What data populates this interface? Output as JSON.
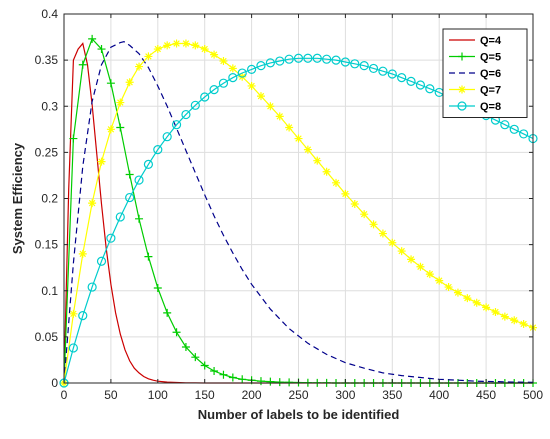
{
  "chart_data": {
    "type": "line",
    "xlabel": "Number of labels to be identified",
    "ylabel": "System Efficiency",
    "xlim": [
      0,
      500
    ],
    "ylim": [
      0,
      0.4
    ],
    "xticks": [
      "0",
      "50",
      "100",
      "150",
      "200",
      "250",
      "300",
      "350",
      "400",
      "450",
      "500"
    ],
    "yticks": [
      "0",
      "0.05",
      "0.1",
      "0.15",
      "0.2",
      "0.25",
      "0.3",
      "0.35",
      "0.4"
    ],
    "grid": true,
    "legend_position": "top-right",
    "series": [
      {
        "name": "Q=4",
        "color": "#cc0000",
        "line_style": "solid",
        "marker": "none",
        "x": [
          0,
          5,
          10,
          15,
          20,
          25,
          30,
          35,
          40,
          45,
          50,
          55,
          60,
          65,
          70,
          75,
          80,
          85,
          90,
          95,
          100,
          110,
          120,
          130,
          140,
          150,
          160,
          170,
          180,
          190,
          200,
          225,
          250,
          275,
          300,
          350,
          400,
          450,
          500
        ],
        "y": [
          0,
          0.21,
          0.35,
          0.362,
          0.368,
          0.345,
          0.302,
          0.248,
          0.194,
          0.146,
          0.107,
          0.076,
          0.053,
          0.036,
          0.024,
          0.016,
          0.011,
          0.007,
          0.0045,
          0.003,
          0.002,
          0.001,
          0.0005,
          0.0002,
          0.0001,
          0,
          0,
          0,
          0,
          0,
          0,
          0,
          0,
          0,
          0,
          0,
          0,
          0,
          0
        ]
      },
      {
        "name": "Q=5",
        "color": "#00cc00",
        "line_style": "solid",
        "marker": "plus",
        "x": [
          0,
          10,
          20,
          30,
          40,
          50,
          60,
          70,
          80,
          90,
          100,
          110,
          120,
          130,
          140,
          150,
          160,
          170,
          180,
          190,
          200,
          210,
          220,
          230,
          240,
          250,
          260,
          270,
          280,
          290,
          300,
          310,
          320,
          330,
          340,
          350,
          360,
          370,
          380,
          390,
          400,
          410,
          420,
          430,
          440,
          450,
          460,
          470,
          480,
          490,
          500
        ],
        "y": [
          0,
          0.265,
          0.345,
          0.373,
          0.362,
          0.325,
          0.277,
          0.226,
          0.178,
          0.137,
          0.103,
          0.076,
          0.055,
          0.039,
          0.028,
          0.019,
          0.013,
          0.009,
          0.006,
          0.004,
          0.003,
          0.002,
          0.0015,
          0.001,
          0.0007,
          0.0005,
          0.0003,
          0.0002,
          0.0001,
          0,
          0,
          0,
          0,
          0,
          0,
          0,
          0,
          0,
          0,
          0,
          0,
          0,
          0,
          0,
          0,
          0,
          0,
          0,
          0,
          0,
          0
        ]
      },
      {
        "name": "Q=6",
        "color": "#00008b",
        "line_style": "dashed",
        "marker": "none",
        "x": [
          0,
          10,
          20,
          30,
          40,
          50,
          60,
          64,
          70,
          80,
          90,
          100,
          110,
          120,
          130,
          140,
          150,
          160,
          170,
          180,
          190,
          200,
          220,
          240,
          260,
          280,
          300,
          320,
          340,
          360,
          380,
          400,
          420,
          440,
          460,
          480,
          500
        ],
        "y": [
          0,
          0.13,
          0.235,
          0.305,
          0.345,
          0.364,
          0.369,
          0.37,
          0.366,
          0.357,
          0.342,
          0.322,
          0.3,
          0.276,
          0.252,
          0.228,
          0.204,
          0.181,
          0.16,
          0.141,
          0.123,
          0.107,
          0.08,
          0.059,
          0.043,
          0.031,
          0.022,
          0.016,
          0.011,
          0.008,
          0.006,
          0.004,
          0.003,
          0.002,
          0.0015,
          0.001,
          0.0008
        ]
      },
      {
        "name": "Q=7",
        "color": "#ffff00",
        "line_style": "solid",
        "marker": "star",
        "x": [
          0,
          10,
          20,
          30,
          40,
          50,
          60,
          70,
          80,
          90,
          100,
          110,
          120,
          130,
          140,
          150,
          160,
          170,
          180,
          190,
          200,
          210,
          220,
          230,
          240,
          250,
          260,
          270,
          280,
          290,
          300,
          310,
          320,
          330,
          340,
          350,
          360,
          370,
          380,
          390,
          400,
          410,
          420,
          430,
          440,
          450,
          460,
          470,
          480,
          490,
          500
        ],
        "y": [
          0,
          0.075,
          0.14,
          0.195,
          0.24,
          0.275,
          0.304,
          0.326,
          0.343,
          0.354,
          0.362,
          0.366,
          0.368,
          0.368,
          0.366,
          0.362,
          0.356,
          0.349,
          0.341,
          0.332,
          0.322,
          0.311,
          0.3,
          0.289,
          0.277,
          0.265,
          0.253,
          0.241,
          0.229,
          0.217,
          0.205,
          0.194,
          0.183,
          0.172,
          0.162,
          0.152,
          0.143,
          0.134,
          0.126,
          0.118,
          0.111,
          0.104,
          0.098,
          0.092,
          0.087,
          0.082,
          0.077,
          0.072,
          0.068,
          0.064,
          0.06
        ]
      },
      {
        "name": "Q=8",
        "color": "#00cccc",
        "line_style": "solid",
        "marker": "circle",
        "x": [
          0,
          10,
          20,
          30,
          40,
          50,
          60,
          70,
          80,
          90,
          100,
          110,
          120,
          130,
          140,
          150,
          160,
          170,
          180,
          190,
          200,
          210,
          220,
          230,
          240,
          250,
          260,
          270,
          280,
          290,
          300,
          310,
          320,
          330,
          340,
          350,
          360,
          370,
          380,
          390,
          400,
          410,
          420,
          430,
          440,
          450,
          460,
          470,
          480,
          490,
          500
        ],
        "y": [
          0,
          0.038,
          0.073,
          0.104,
          0.132,
          0.157,
          0.18,
          0.201,
          0.22,
          0.237,
          0.253,
          0.267,
          0.28,
          0.291,
          0.301,
          0.31,
          0.318,
          0.325,
          0.331,
          0.336,
          0.34,
          0.344,
          0.347,
          0.349,
          0.351,
          0.352,
          0.352,
          0.352,
          0.351,
          0.35,
          0.348,
          0.346,
          0.344,
          0.341,
          0.338,
          0.335,
          0.331,
          0.327,
          0.323,
          0.319,
          0.315,
          0.31,
          0.305,
          0.3,
          0.295,
          0.29,
          0.285,
          0.28,
          0.275,
          0.27,
          0.265
        ]
      }
    ]
  }
}
